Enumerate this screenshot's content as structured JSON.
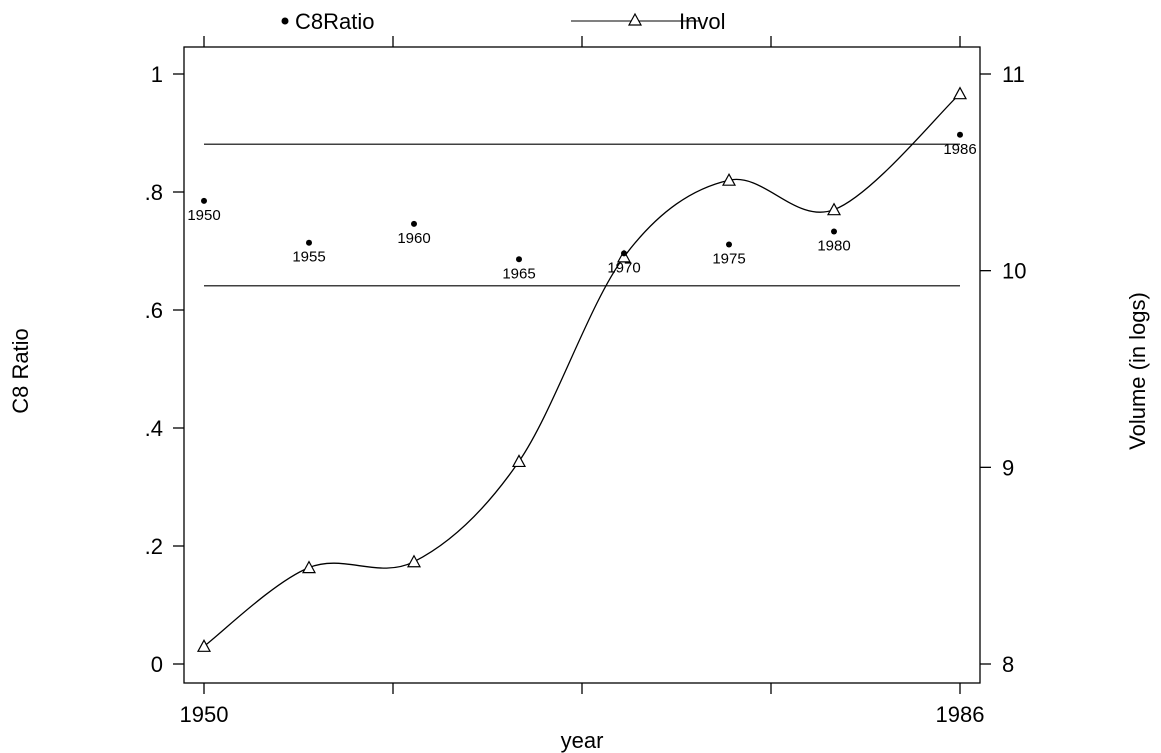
{
  "chart_data": {
    "type": "scatter",
    "xlabel": "year",
    "ylabel_left": "C8 Ratio",
    "ylabel_right": "Volume (in logs)",
    "xlim": [
      1950,
      1986
    ],
    "ylim_left": [
      0,
      1
    ],
    "ylim_right": [
      8,
      11
    ],
    "x_tick_labels": [
      "1950",
      "1986"
    ],
    "y_left_ticks": [
      {
        "value": 0,
        "label": "0"
      },
      {
        "value": 0.2,
        "label": ".2"
      },
      {
        "value": 0.4,
        "label": ".4"
      },
      {
        "value": 0.6,
        "label": ".6"
      },
      {
        "value": 0.8,
        "label": ".8"
      },
      {
        "value": 1,
        "label": "1"
      }
    ],
    "y_right_ticks": [
      {
        "value": 8,
        "label": "8"
      },
      {
        "value": 9,
        "label": "9"
      },
      {
        "value": 10,
        "label": "10"
      },
      {
        "value": 11,
        "label": "11"
      }
    ],
    "legend": [
      {
        "label": "C8Ratio",
        "marker": "dot",
        "line": false
      },
      {
        "label": "Invol",
        "marker": "triangle",
        "line": true
      }
    ],
    "series": [
      {
        "name": "C8Ratio",
        "axis": "left",
        "style": "points",
        "x": [
          1950,
          1955,
          1960,
          1965,
          1970,
          1975,
          1980,
          1986
        ],
        "y": [
          0.785,
          0.714,
          0.746,
          0.686,
          0.696,
          0.711,
          0.733,
          0.897
        ],
        "point_labels": [
          "1950",
          "1955",
          "1960",
          "1965",
          "1970",
          "1975",
          "1980",
          "1986"
        ]
      },
      {
        "name": "Invol",
        "axis": "right",
        "style": "line-markers",
        "x": [
          1950,
          1955,
          1960,
          1965,
          1970,
          1975,
          1980,
          1986
        ],
        "y": [
          8.09,
          8.49,
          8.52,
          9.03,
          10.07,
          10.46,
          10.31,
          10.9
        ]
      }
    ],
    "reference_lines": [
      {
        "axis": "left",
        "y": 0.881
      },
      {
        "axis": "left",
        "y": 0.641
      }
    ]
  }
}
